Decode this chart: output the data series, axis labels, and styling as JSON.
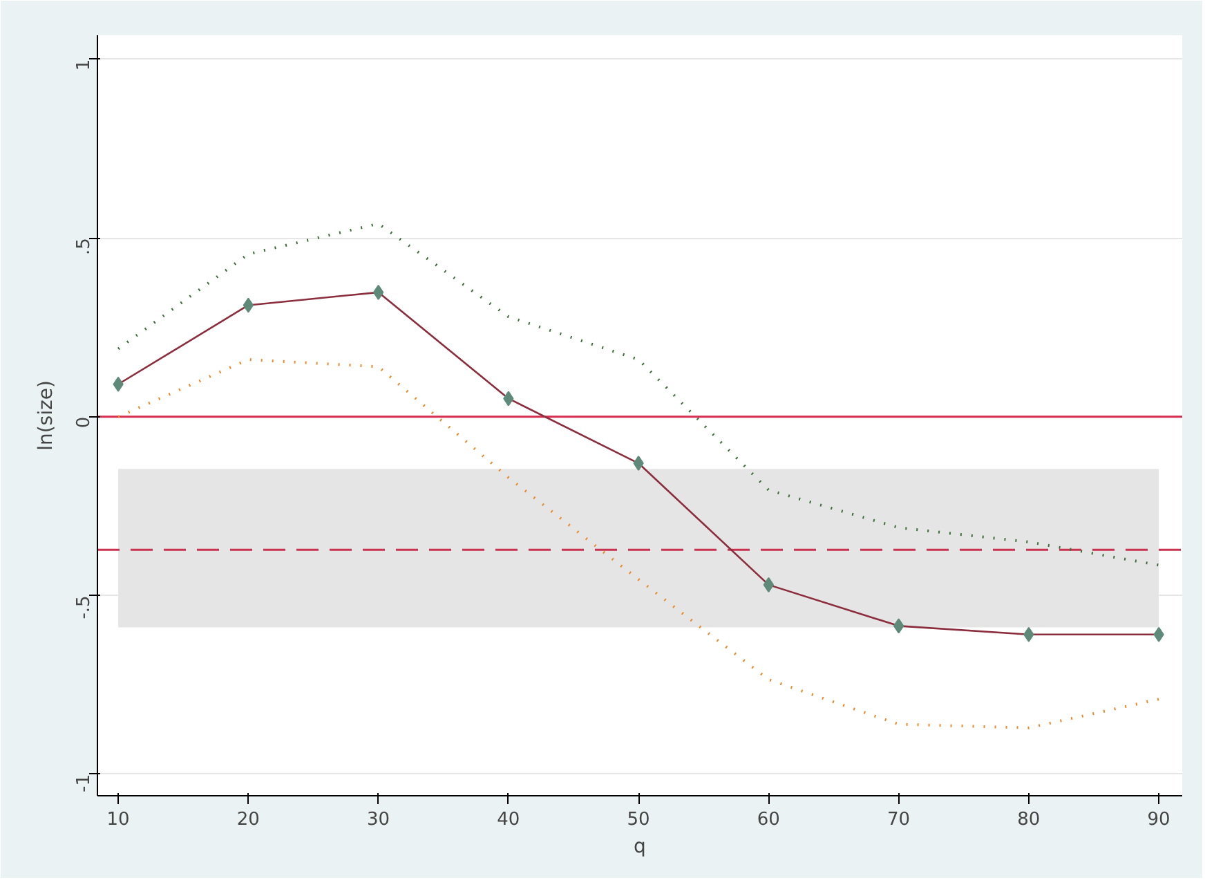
{
  "chart_data": {
    "type": "line",
    "xlabel": "q",
    "ylabel": "ln(size)",
    "x": [
      10,
      20,
      30,
      40,
      50,
      60,
      70,
      80,
      90
    ],
    "series": [
      {
        "color": "#3f6e3a",
        "line_style": "dotted",
        "marker": "none",
        "values": [
          0.19,
          0.455,
          0.54,
          0.28,
          0.16,
          -0.205,
          -0.31,
          -0.35,
          -0.415
        ]
      },
      {
        "color": "#e8892b",
        "line_style": "dotted",
        "marker": "none",
        "values": [
          0.0,
          0.16,
          0.14,
          -0.17,
          -0.455,
          -0.735,
          -0.86,
          -0.87,
          -0.79
        ]
      },
      {
        "color": "#8b2d3c",
        "line_style": "solid",
        "marker": "none",
        "values": [
          0.091,
          0.312,
          0.348,
          0.051,
          -0.13,
          -0.47,
          -0.585,
          -0.609,
          -0.609
        ]
      },
      {
        "type": "scatter",
        "color": "#5f8a7a",
        "marker": "diamond",
        "values": [
          0.091,
          0.312,
          0.348,
          0.051,
          -0.13,
          -0.47,
          -0.585,
          -0.609,
          -0.609
        ]
      }
    ],
    "xlim": [
      8.4,
      91.8
    ],
    "ylim": [
      -1.06,
      1.067
    ],
    "xticks": [
      10,
      20,
      30,
      40,
      50,
      60,
      70,
      80,
      90
    ],
    "yticks": [
      {
        "value": -1,
        "label": "-1"
      },
      {
        "value": -0.5,
        "label": "-.5"
      },
      {
        "value": 0,
        "label": "0"
      },
      {
        "value": 0.5,
        "label": ".5"
      },
      {
        "value": 1,
        "label": "1"
      }
    ],
    "bands": [
      {
        "axis": "y",
        "from": -0.589,
        "to": -0.146,
        "color": "#e5e5e5"
      }
    ],
    "ref_lines": [
      {
        "axis": "y",
        "value": 0,
        "color": "#d62a4f",
        "line_style": "solid"
      },
      {
        "axis": "y",
        "value": -0.372,
        "color": "#c9324f",
        "line_style": "dashed"
      }
    ],
    "grid": "y"
  }
}
